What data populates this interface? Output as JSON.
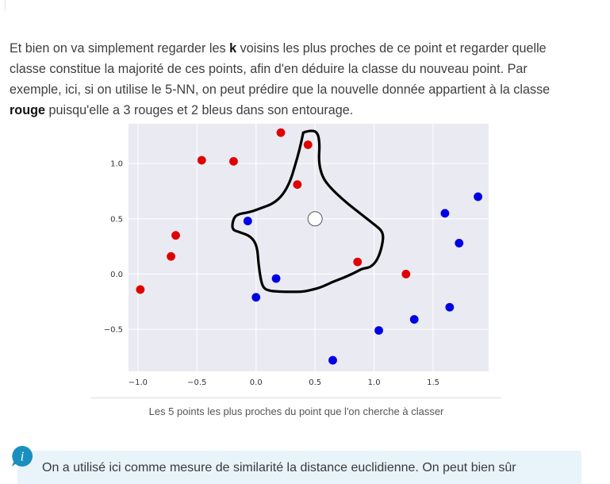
{
  "paragraph": {
    "part1": "Et bien on va simplement regarder les ",
    "bold_k": "k",
    "part2": " voisins les plus proches de ce point et regarder quelle classe constitue la majorité de ces points, afin d'en déduire la classe du nouveau point. Par exemple, ici, si on utilise le 5-NN, on peut prédire que la nouvelle donnée appartient à la classe ",
    "bold_rouge": "rouge",
    "part3": " puisqu'elle a 3 rouges et 2 bleus dans son entourage."
  },
  "figure": {
    "caption": "Les 5 points les plus proches du point que l'on cherche à classer"
  },
  "callout": {
    "icon": "info-icon",
    "text": "On a utilisé ici comme mesure de similarité la distance euclidienne. On peut bien sûr"
  },
  "colors": {
    "plot_background": "#eaeaf2",
    "grid": "#ffffff",
    "red_class": "#e00000",
    "blue_class": "#0000e6",
    "new_point": "#ffffff",
    "annotation_outline": "#000000",
    "callout_background": "#e8f4f9",
    "info_icon": "#1a8fbd"
  },
  "chart_data": {
    "type": "scatter",
    "title": "",
    "xlabel": "",
    "ylabel": "",
    "xlim": [
      -1.08,
      1.97
    ],
    "ylim": [
      -0.88,
      1.36
    ],
    "xticks": [
      -1.0,
      -0.5,
      0.0,
      0.5,
      1.0,
      1.5
    ],
    "xtick_labels": [
      "−1.0",
      "−0.5",
      "0.0",
      "0.5",
      "1.0",
      "1.5"
    ],
    "yticks": [
      -0.5,
      0.0,
      0.5,
      1.0
    ],
    "ytick_labels": [
      "−0.5",
      "0.0",
      "0.5",
      "1.0"
    ],
    "grid": true,
    "legend": false,
    "series": [
      {
        "color": "#e00000",
        "points": [
          [
            -0.98,
            -0.14
          ],
          [
            -0.72,
            0.16
          ],
          [
            -0.68,
            0.35
          ],
          [
            -0.46,
            1.03
          ],
          [
            -0.19,
            1.02
          ],
          [
            0.21,
            1.28
          ],
          [
            0.35,
            0.81
          ],
          [
            0.44,
            1.17
          ],
          [
            0.86,
            0.11
          ],
          [
            1.27,
            0.0
          ]
        ]
      },
      {
        "color": "#0000e6",
        "points": [
          [
            -0.07,
            0.48
          ],
          [
            0.0,
            -0.21
          ],
          [
            0.17,
            -0.04
          ],
          [
            0.65,
            -0.78
          ],
          [
            1.04,
            -0.51
          ],
          [
            1.34,
            -0.41
          ],
          [
            1.6,
            0.55
          ],
          [
            1.64,
            -0.3
          ],
          [
            1.72,
            0.28
          ],
          [
            1.88,
            0.7
          ]
        ]
      },
      {
        "color": "#ffffff",
        "points": [
          [
            0.5,
            0.5
          ]
        ]
      }
    ],
    "annotation_path": [
      [
        0.4,
        1.28
      ],
      [
        0.45,
        1.3
      ],
      [
        0.52,
        1.29
      ],
      [
        0.54,
        1.18
      ],
      [
        0.53,
        1.02
      ],
      [
        0.56,
        0.88
      ],
      [
        0.63,
        0.78
      ],
      [
        0.75,
        0.66
      ],
      [
        0.88,
        0.55
      ],
      [
        1.0,
        0.45
      ],
      [
        1.08,
        0.38
      ],
      [
        1.07,
        0.26
      ],
      [
        1.03,
        0.13
      ],
      [
        0.97,
        0.06
      ],
      [
        0.9,
        0.05
      ],
      [
        0.85,
        0.02
      ],
      [
        0.75,
        -0.03
      ],
      [
        0.65,
        -0.07
      ],
      [
        0.55,
        -0.12
      ],
      [
        0.48,
        -0.14
      ],
      [
        0.4,
        -0.16
      ],
      [
        0.3,
        -0.16
      ],
      [
        0.2,
        -0.16
      ],
      [
        0.1,
        -0.15
      ],
      [
        0.06,
        -0.12
      ],
      [
        0.04,
        -0.05
      ],
      [
        0.02,
        0.1
      ],
      [
        0.01,
        0.25
      ],
      [
        -0.04,
        0.34
      ],
      [
        -0.14,
        0.38
      ],
      [
        -0.2,
        0.4
      ],
      [
        -0.2,
        0.47
      ],
      [
        -0.17,
        0.54
      ],
      [
        -0.05,
        0.56
      ],
      [
        0.05,
        0.6
      ],
      [
        0.15,
        0.64
      ],
      [
        0.23,
        0.72
      ],
      [
        0.29,
        0.84
      ],
      [
        0.33,
        0.98
      ],
      [
        0.37,
        1.13
      ],
      [
        0.4,
        1.28
      ]
    ]
  }
}
